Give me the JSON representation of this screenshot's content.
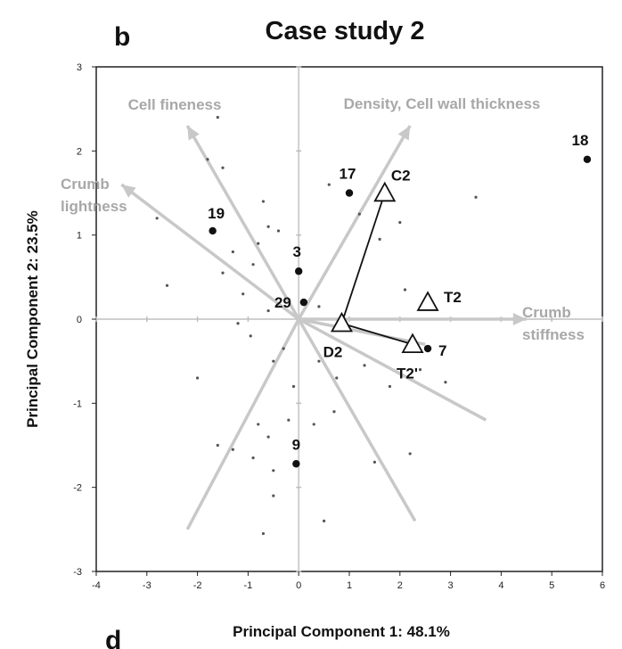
{
  "panel_letter": "b",
  "next_panel_letter": "d",
  "chart_data": {
    "type": "scatter",
    "title": "Case study 2",
    "xlabel": "Principal Component 1: 48.1%",
    "ylabel": "Principal Component 2: 23.5%",
    "xlim": [
      -4,
      6
    ],
    "ylim": [
      -3,
      3
    ],
    "xticks": [
      -4,
      -3,
      -2,
      -1,
      0,
      1,
      2,
      3,
      4,
      5,
      6
    ],
    "yticks": [
      -3,
      -2,
      -1,
      0,
      1,
      2,
      3
    ],
    "grid": false,
    "labeled_points": [
      {
        "label": "18",
        "x": 5.7,
        "y": 1.9
      },
      {
        "label": "17",
        "x": 1.0,
        "y": 1.5
      },
      {
        "label": "19",
        "x": -1.7,
        "y": 1.05
      },
      {
        "label": "3",
        "x": 0.0,
        "y": 0.57
      },
      {
        "label": "29",
        "x": 0.1,
        "y": 0.2
      },
      {
        "label": "7",
        "x": 2.55,
        "y": -0.35
      },
      {
        "label": "9",
        "x": -0.05,
        "y": -1.72
      }
    ],
    "treatments": [
      {
        "label": "C2",
        "x": 1.7,
        "y": 1.5
      },
      {
        "label": "D2",
        "x": 0.85,
        "y": -0.05
      },
      {
        "label": "T2'",
        "x": 2.25,
        "y": -0.3
      },
      {
        "label": "T2",
        "x": 2.55,
        "y": 0.2
      }
    ],
    "treatment_links": [
      [
        "C2",
        "D2"
      ],
      [
        "D2",
        "T2'"
      ]
    ],
    "loading_vectors": [
      {
        "label": "Cell fineness",
        "x": -2.2,
        "y": 2.3
      },
      {
        "label": "Density, Cell wall thickness",
        "x": 2.2,
        "y": 2.3
      },
      {
        "label": "Crumb lightness",
        "x": -3.5,
        "y": 1.6
      },
      {
        "label": "Crumb stiffness",
        "x": 4.5,
        "y": 0.0
      },
      {
        "label": "",
        "x": 3.7,
        "y": -1.2
      },
      {
        "label": "",
        "x": 2.3,
        "y": -2.4
      },
      {
        "label": "",
        "x": -2.2,
        "y": -2.5
      },
      {
        "label": "",
        "x": 2.5,
        "y": -0.3
      }
    ],
    "vector_label_lines": [
      [
        "Cell fineness"
      ],
      [
        "Density, Cell wall thickness"
      ],
      [
        "Crumb",
        "lightness"
      ],
      [
        "Crumb",
        "stiffness"
      ]
    ],
    "background_points": [
      [
        -1.6,
        2.4
      ],
      [
        -1.8,
        1.9
      ],
      [
        -1.5,
        1.8
      ],
      [
        -0.7,
        1.4
      ],
      [
        -0.6,
        1.1
      ],
      [
        -0.4,
        1.05
      ],
      [
        -0.8,
        0.9
      ],
      [
        -1.3,
        0.8
      ],
      [
        -0.9,
        0.65
      ],
      [
        -1.5,
        0.55
      ],
      [
        -2.6,
        0.4
      ],
      [
        -1.1,
        0.3
      ],
      [
        -0.6,
        0.1
      ],
      [
        -1.2,
        -0.05
      ],
      [
        -0.95,
        -0.2
      ],
      [
        -0.3,
        -0.35
      ],
      [
        -0.5,
        -0.5
      ],
      [
        -0.1,
        -0.8
      ],
      [
        -2.0,
        -0.7
      ],
      [
        0.4,
        -0.5
      ],
      [
        0.75,
        -0.7
      ],
      [
        1.3,
        -0.55
      ],
      [
        1.8,
        -0.8
      ],
      [
        2.4,
        -0.6
      ],
      [
        2.9,
        -0.75
      ],
      [
        0.7,
        -1.1
      ],
      [
        -0.2,
        -1.2
      ],
      [
        0.3,
        -1.25
      ],
      [
        -0.8,
        -1.25
      ],
      [
        -0.6,
        -1.4
      ],
      [
        -1.3,
        -1.55
      ],
      [
        -1.6,
        -1.5
      ],
      [
        -0.9,
        -1.65
      ],
      [
        -0.5,
        -1.8
      ],
      [
        1.5,
        -1.7
      ],
      [
        2.2,
        -1.6
      ],
      [
        -0.5,
        -2.1
      ],
      [
        0.5,
        -2.4
      ],
      [
        -0.7,
        -2.55
      ],
      [
        0.6,
        1.6
      ],
      [
        1.2,
        1.25
      ],
      [
        3.5,
        1.45
      ],
      [
        2.0,
        1.15
      ],
      [
        1.6,
        0.95
      ],
      [
        2.1,
        0.35
      ],
      [
        -2.8,
        1.2
      ],
      [
        0.4,
        0.15
      ]
    ]
  }
}
